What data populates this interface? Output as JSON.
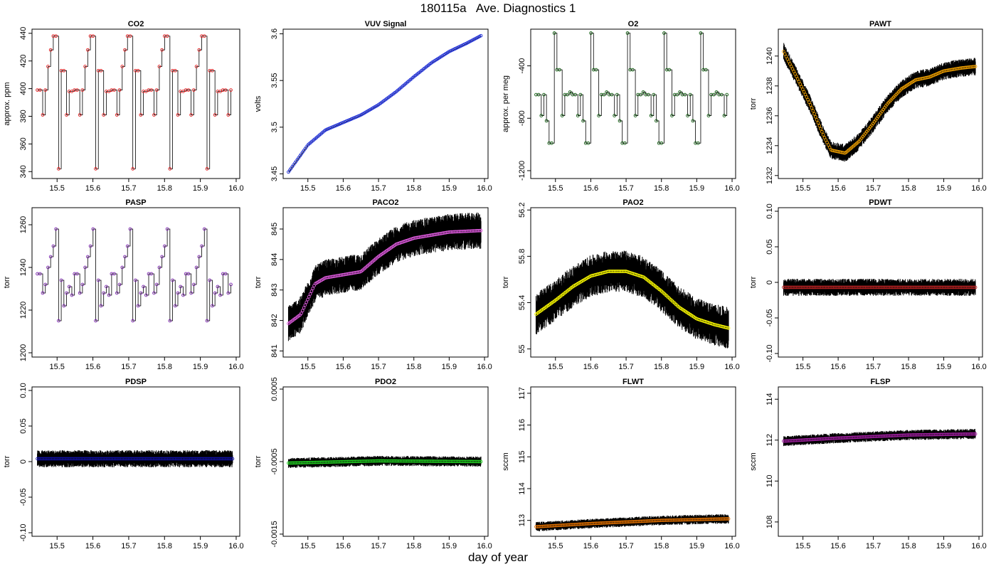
{
  "figure": {
    "title": "180115a   Ave. Diagnostics 1",
    "xlabel": "day of year"
  },
  "chart_data": [
    {
      "type": "line",
      "title": "CO2",
      "ylabel": "approx. ppm",
      "xlim": [
        15.43,
        16.01
      ],
      "ylim": [
        335,
        443
      ],
      "xticks": [
        15.5,
        15.6,
        15.7,
        15.8,
        15.9,
        16.0
      ],
      "yticks": [
        340,
        360,
        380,
        400,
        420,
        440
      ],
      "marker_color": "#e31a1c",
      "noise": 0,
      "pattern": [
        399,
        399,
        381,
        399,
        416,
        428,
        438,
        438,
        342,
        413,
        413,
        381,
        398,
        398
      ],
      "step_days": 0.0074
    },
    {
      "type": "line",
      "title": "VUV Signal",
      "ylabel": "volts",
      "xlim": [
        15.43,
        16.01
      ],
      "ylim": [
        3.445,
        3.605
      ],
      "xticks": [
        15.5,
        15.6,
        15.7,
        15.8,
        15.9,
        16.0
      ],
      "yticks": [
        3.45,
        3.5,
        3.55,
        3.6
      ],
      "marker_color": "#1f2fd8",
      "noise": 0,
      "curve": [
        [
          15.445,
          3.452
        ],
        [
          15.5,
          3.481
        ],
        [
          15.55,
          3.497
        ],
        [
          15.6,
          3.505
        ],
        [
          15.65,
          3.513
        ],
        [
          15.7,
          3.524
        ],
        [
          15.75,
          3.538
        ],
        [
          15.8,
          3.554
        ],
        [
          15.85,
          3.569
        ],
        [
          15.9,
          3.581
        ],
        [
          15.95,
          3.59
        ],
        [
          15.99,
          3.598
        ]
      ]
    },
    {
      "type": "line",
      "title": "O2",
      "ylabel": "approx. per meg",
      "xlim": [
        15.43,
        16.01
      ],
      "ylim": [
        -1260,
        -120
      ],
      "xticks": [
        15.5,
        15.6,
        15.7,
        15.8,
        15.9,
        16.0
      ],
      "yticks": [
        -1200,
        -800,
        -400
      ],
      "marker_color": "#0a5a0a",
      "noise": 0,
      "pattern": [
        -620,
        -620,
        -780,
        -620,
        -820,
        -990,
        -990,
        -150,
        -430,
        -430,
        -780,
        -620,
        -620,
        -600
      ],
      "step_days": 0.0074
    },
    {
      "type": "line",
      "title": "PAWT",
      "ylabel": "torr",
      "xlim": [
        15.43,
        16.01
      ],
      "ylim": [
        1231.8,
        1241.8
      ],
      "xticks": [
        15.5,
        15.6,
        15.7,
        15.8,
        15.9,
        16.0
      ],
      "yticks": [
        1232,
        1234,
        1236,
        1238,
        1240
      ],
      "marker_color": "#f0a000",
      "noise": 0.6,
      "curve": [
        [
          15.445,
          1240.3
        ],
        [
          15.48,
          1238.7
        ],
        [
          15.52,
          1236.8
        ],
        [
          15.56,
          1234.6
        ],
        [
          15.58,
          1233.7
        ],
        [
          15.62,
          1233.5
        ],
        [
          15.66,
          1234.3
        ],
        [
          15.7,
          1235.5
        ],
        [
          15.74,
          1236.8
        ],
        [
          15.78,
          1237.8
        ],
        [
          15.82,
          1238.4
        ],
        [
          15.86,
          1238.6
        ],
        [
          15.9,
          1239.0
        ],
        [
          15.95,
          1239.2
        ],
        [
          15.99,
          1239.3
        ]
      ]
    },
    {
      "type": "line",
      "title": "PASP",
      "ylabel": "torr",
      "xlim": [
        15.43,
        16.01
      ],
      "ylim": [
        1198,
        1268
      ],
      "xticks": [
        15.5,
        15.6,
        15.7,
        15.8,
        15.9,
        16.0
      ],
      "yticks": [
        1200,
        1220,
        1240,
        1260
      ],
      "marker_color": "#7a1fb0",
      "noise": 0,
      "pattern": [
        1237,
        1237,
        1228,
        1232,
        1240,
        1245,
        1250,
        1258,
        1215,
        1234,
        1222,
        1228,
        1231,
        1227
      ],
      "step_days": 0.0074
    },
    {
      "type": "line",
      "title": "PACO2",
      "ylabel": "torr",
      "xlim": [
        15.43,
        16.01
      ],
      "ylim": [
        840.8,
        845.7
      ],
      "xticks": [
        15.5,
        15.6,
        15.7,
        15.8,
        15.9,
        16.0
      ],
      "yticks": [
        841,
        842,
        843,
        844,
        845
      ],
      "marker_color": "#e05be0",
      "noise": 0.6,
      "curve": [
        [
          15.445,
          841.9
        ],
        [
          15.48,
          842.2
        ],
        [
          15.52,
          843.2
        ],
        [
          15.55,
          843.4
        ],
        [
          15.6,
          843.5
        ],
        [
          15.65,
          843.6
        ],
        [
          15.7,
          844.1
        ],
        [
          15.75,
          844.5
        ],
        [
          15.8,
          844.7
        ],
        [
          15.85,
          844.8
        ],
        [
          15.9,
          844.9
        ],
        [
          15.99,
          844.95
        ]
      ]
    },
    {
      "type": "line",
      "title": "PAO2",
      "ylabel": "torr",
      "xlim": [
        15.43,
        16.01
      ],
      "ylim": [
        54.93,
        56.22
      ],
      "xticks": [
        15.5,
        15.6,
        15.7,
        15.8,
        15.9,
        16.0
      ],
      "yticks": [
        55.0,
        55.4,
        55.8,
        56.2
      ],
      "marker_color": "#ffff00",
      "noise": 0.18,
      "curve": [
        [
          15.445,
          55.3
        ],
        [
          15.5,
          55.42
        ],
        [
          15.55,
          55.54
        ],
        [
          15.6,
          55.63
        ],
        [
          15.65,
          55.67
        ],
        [
          15.7,
          55.67
        ],
        [
          15.75,
          55.62
        ],
        [
          15.8,
          55.5
        ],
        [
          15.85,
          55.36
        ],
        [
          15.9,
          55.26
        ],
        [
          15.95,
          55.21
        ],
        [
          15.99,
          55.18
        ]
      ]
    },
    {
      "type": "line",
      "title": "PDWT",
      "ylabel": "torr",
      "xlim": [
        15.43,
        16.01
      ],
      "ylim": [
        -0.105,
        0.105
      ],
      "xticks": [
        15.5,
        15.6,
        15.7,
        15.8,
        15.9,
        16.0
      ],
      "yticks": [
        -0.1,
        -0.05,
        0.0,
        0.05,
        0.1
      ],
      "marker_color": "#b22222",
      "noise": 0.012,
      "curve": [
        [
          15.445,
          -0.007
        ],
        [
          15.99,
          -0.007
        ]
      ]
    },
    {
      "type": "line",
      "title": "PDSP",
      "ylabel": "torr",
      "xlim": [
        15.43,
        16.01
      ],
      "ylim": [
        -0.105,
        0.105
      ],
      "xticks": [
        15.5,
        15.6,
        15.7,
        15.8,
        15.9,
        16.0
      ],
      "yticks": [
        -0.1,
        -0.05,
        0.0,
        0.05,
        0.1
      ],
      "marker_color": "#1010a0",
      "noise": 0.012,
      "curve": [
        [
          15.445,
          0.004
        ],
        [
          15.99,
          0.004
        ]
      ]
    },
    {
      "type": "line",
      "title": "PDO2",
      "ylabel": "torr",
      "xlim": [
        15.43,
        16.01
      ],
      "ylim": [
        -0.00153,
        0.00053
      ],
      "xticks": [
        15.5,
        15.6,
        15.7,
        15.8,
        15.9,
        16.0
      ],
      "yticks": [
        -0.0015,
        -0.0005,
        0.0005
      ],
      "marker_color": "#22cc22",
      "noise": 7e-05,
      "curve": [
        [
          15.445,
          -0.00052
        ],
        [
          15.7,
          -0.00049
        ],
        [
          15.99,
          -0.0005
        ]
      ]
    },
    {
      "type": "line",
      "title": "FLWT",
      "ylabel": "sccm",
      "xlim": [
        15.43,
        16.01
      ],
      "ylim": [
        112.5,
        117.2
      ],
      "xticks": [
        15.5,
        15.6,
        15.7,
        15.8,
        15.9,
        16.0
      ],
      "yticks": [
        113,
        114,
        115,
        116,
        117
      ],
      "marker_color": "#e07000",
      "noise": 0.15,
      "curve": [
        [
          15.445,
          112.8
        ],
        [
          15.6,
          112.9
        ],
        [
          15.8,
          113.0
        ],
        [
          15.99,
          113.05
        ]
      ]
    },
    {
      "type": "line",
      "title": "FLSP",
      "ylabel": "sccm",
      "xlim": [
        15.43,
        16.01
      ],
      "ylim": [
        107.3,
        114.6
      ],
      "xticks": [
        15.5,
        15.6,
        15.7,
        15.8,
        15.9,
        16.0
      ],
      "yticks": [
        108,
        110,
        112,
        114
      ],
      "marker_color": "#a020a0",
      "noise": 0.25,
      "curve": [
        [
          15.445,
          111.95
        ],
        [
          15.6,
          112.1
        ],
        [
          15.8,
          112.25
        ],
        [
          15.99,
          112.3
        ]
      ]
    }
  ]
}
